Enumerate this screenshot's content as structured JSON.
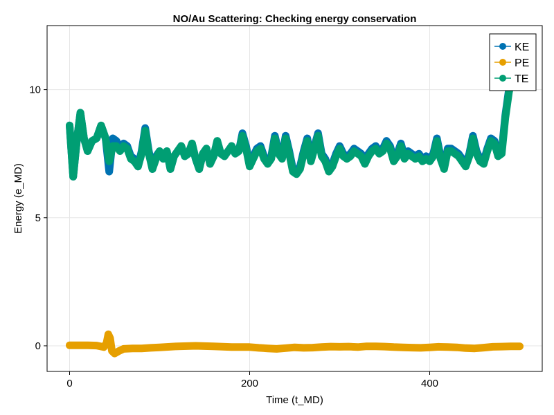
{
  "chart_data": {
    "type": "line",
    "title": "NO/Au Scattering: Checking energy conservation",
    "xlabel": "Time (t_MD)",
    "ylabel": "Energy (e_MD)",
    "xlim": [
      -25,
      525
    ],
    "ylim": [
      -1,
      12.5
    ],
    "xticks": [
      0,
      200,
      400
    ],
    "yticks": [
      0,
      5,
      10
    ],
    "grid": true,
    "legend_position": "top-right",
    "series": [
      {
        "name": "KE",
        "color": "#0072B2",
        "x": [
          0,
          4,
          8,
          12,
          16,
          20,
          25,
          30,
          35,
          40,
          44,
          48,
          52,
          56,
          60,
          64,
          68,
          72,
          76,
          80,
          84,
          88,
          92,
          96,
          100,
          104,
          108,
          112,
          116,
          120,
          124,
          128,
          132,
          136,
          140,
          144,
          148,
          152,
          156,
          160,
          164,
          168,
          172,
          176,
          180,
          184,
          188,
          192,
          196,
          200,
          204,
          208,
          212,
          216,
          220,
          224,
          228,
          232,
          236,
          240,
          244,
          248,
          252,
          256,
          260,
          264,
          268,
          272,
          276,
          280,
          284,
          288,
          292,
          296,
          300,
          304,
          308,
          312,
          316,
          320,
          324,
          328,
          332,
          336,
          340,
          344,
          348,
          352,
          356,
          360,
          364,
          368,
          372,
          376,
          380,
          384,
          388,
          392,
          396,
          400,
          404,
          408,
          412,
          416,
          420,
          424,
          428,
          432,
          436,
          440,
          444,
          448,
          452,
          456,
          460,
          464,
          468,
          472,
          476,
          480,
          484,
          488,
          492,
          496,
          500
        ],
        "y": [
          8.6,
          6.6,
          8.0,
          9.1,
          8.1,
          7.6,
          8.0,
          8.1,
          8.6,
          8.1,
          6.8,
          8.1,
          8.0,
          7.7,
          7.9,
          7.8,
          7.4,
          7.3,
          7.0,
          7.6,
          8.5,
          7.6,
          6.9,
          7.4,
          7.6,
          7.3,
          7.6,
          6.9,
          7.4,
          7.6,
          7.8,
          7.4,
          7.5,
          7.9,
          7.3,
          6.9,
          7.5,
          7.7,
          7.1,
          7.4,
          8.0,
          7.5,
          7.4,
          7.6,
          7.8,
          7.5,
          7.6,
          8.3,
          7.8,
          7.1,
          7.4,
          7.7,
          7.8,
          7.4,
          7.2,
          7.4,
          8.2,
          7.6,
          7.4,
          8.2,
          7.6,
          6.9,
          6.8,
          7.0,
          7.6,
          8.1,
          7.3,
          7.8,
          8.3,
          7.5,
          7.3,
          6.9,
          7.1,
          7.5,
          7.8,
          7.5,
          7.4,
          7.5,
          7.7,
          7.6,
          7.5,
          7.2,
          7.5,
          7.7,
          7.8,
          7.6,
          7.7,
          8.0,
          7.8,
          7.3,
          7.5,
          7.9,
          7.4,
          7.6,
          7.5,
          7.4,
          7.5,
          7.3,
          7.4,
          7.3,
          7.5,
          8.1,
          7.4,
          7.0,
          7.7,
          7.7,
          7.6,
          7.5,
          7.3,
          7.1,
          7.5,
          8.2,
          7.6,
          7.3,
          7.2,
          7.7,
          8.1,
          8.0,
          7.5,
          7.6,
          9.0,
          10.0,
          10.6,
          11.2,
          11.5
        ]
      },
      {
        "name": "PE",
        "color": "#E69F00",
        "x": [
          0,
          10,
          20,
          30,
          38,
          41,
          43,
          45,
          47,
          50,
          55,
          60,
          70,
          80,
          90,
          100,
          120,
          140,
          160,
          180,
          200,
          210,
          220,
          230,
          240,
          250,
          260,
          270,
          280,
          290,
          300,
          310,
          320,
          330,
          340,
          350,
          360,
          370,
          380,
          390,
          400,
          410,
          420,
          430,
          440,
          450,
          460,
          470,
          480,
          490,
          500
        ],
        "y": [
          0.02,
          0.02,
          0.02,
          0.01,
          -0.05,
          0.1,
          0.45,
          0.3,
          -0.2,
          -0.3,
          -0.2,
          -0.12,
          -0.1,
          -0.1,
          -0.08,
          -0.06,
          -0.02,
          0.0,
          -0.02,
          -0.05,
          -0.05,
          -0.08,
          -0.1,
          -0.12,
          -0.09,
          -0.06,
          -0.08,
          -0.07,
          -0.05,
          -0.03,
          -0.04,
          -0.03,
          -0.05,
          -0.02,
          -0.02,
          -0.03,
          -0.05,
          -0.06,
          -0.07,
          -0.08,
          -0.06,
          -0.04,
          -0.05,
          -0.06,
          -0.09,
          -0.1,
          -0.07,
          -0.04,
          -0.03,
          -0.02,
          -0.02
        ]
      },
      {
        "name": "TE",
        "color": "#009E73",
        "x": [
          0,
          4,
          8,
          12,
          16,
          20,
          25,
          30,
          35,
          40,
          44,
          48,
          52,
          56,
          60,
          64,
          68,
          72,
          76,
          80,
          84,
          88,
          92,
          96,
          100,
          104,
          108,
          112,
          116,
          120,
          124,
          128,
          132,
          136,
          140,
          144,
          148,
          152,
          156,
          160,
          164,
          168,
          172,
          176,
          180,
          184,
          188,
          192,
          196,
          200,
          204,
          208,
          212,
          216,
          220,
          224,
          228,
          232,
          236,
          240,
          244,
          248,
          252,
          256,
          260,
          264,
          268,
          272,
          276,
          280,
          284,
          288,
          292,
          296,
          300,
          304,
          308,
          312,
          316,
          320,
          324,
          328,
          332,
          336,
          340,
          344,
          348,
          352,
          356,
          360,
          364,
          368,
          372,
          376,
          380,
          384,
          388,
          392,
          396,
          400,
          404,
          408,
          412,
          416,
          420,
          424,
          428,
          432,
          436,
          440,
          444,
          448,
          452,
          456,
          460,
          464,
          468,
          472,
          476,
          480,
          484,
          488,
          492,
          496,
          500
        ],
        "y": [
          8.6,
          6.6,
          8.0,
          9.1,
          8.1,
          7.6,
          8.0,
          8.1,
          8.6,
          8.1,
          7.2,
          7.8,
          7.8,
          7.6,
          7.8,
          7.7,
          7.3,
          7.2,
          7.0,
          7.5,
          8.4,
          7.5,
          6.9,
          7.3,
          7.6,
          7.3,
          7.6,
          6.9,
          7.4,
          7.6,
          7.8,
          7.4,
          7.5,
          7.9,
          7.3,
          6.9,
          7.5,
          7.7,
          7.1,
          7.4,
          8.0,
          7.5,
          7.4,
          7.6,
          7.8,
          7.5,
          7.6,
          8.2,
          7.7,
          7.0,
          7.3,
          7.6,
          7.7,
          7.3,
          7.1,
          7.3,
          8.1,
          7.5,
          7.3,
          8.1,
          7.5,
          6.8,
          6.7,
          6.9,
          7.5,
          8.0,
          7.2,
          7.7,
          8.2,
          7.4,
          7.2,
          6.8,
          7.0,
          7.4,
          7.7,
          7.4,
          7.3,
          7.4,
          7.6,
          7.5,
          7.4,
          7.1,
          7.4,
          7.6,
          7.7,
          7.5,
          7.6,
          7.9,
          7.7,
          7.2,
          7.4,
          7.8,
          7.3,
          7.5,
          7.4,
          7.3,
          7.4,
          7.2,
          7.3,
          7.2,
          7.4,
          8.0,
          7.3,
          6.9,
          7.6,
          7.6,
          7.5,
          7.4,
          7.2,
          7.0,
          7.4,
          8.1,
          7.5,
          7.2,
          7.1,
          7.6,
          8.0,
          7.9,
          7.4,
          7.5,
          8.9,
          9.9,
          10.5,
          11.1,
          11.4
        ]
      }
    ]
  }
}
